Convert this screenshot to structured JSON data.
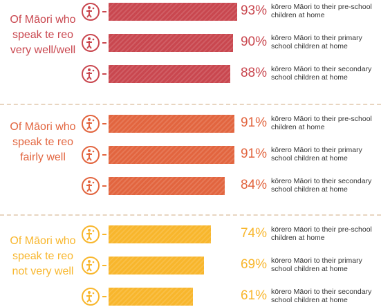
{
  "chart_data": [
    {
      "type": "bar",
      "title": "Of Māori who speak te reo very well/well",
      "color": "#c9474f",
      "categories": [
        "kōrero Māori to their pre-school children at home",
        "kōrero Māori to their primary school children at home",
        "kōrero Māori to their secondary school children at home"
      ],
      "values": [
        93,
        90,
        88
      ],
      "value_labels": [
        "93%",
        "90%",
        "88%"
      ]
    },
    {
      "type": "bar",
      "title": "Of Māori who speak te reo fairly well",
      "color": "#e2653f",
      "categories": [
        "kōrero Māori to their pre-school children at home",
        "kōrero Māori to their primary school children at home",
        "kōrero Māori to their secondary school children at home"
      ],
      "values": [
        91,
        91,
        84
      ],
      "value_labels": [
        "91%",
        "91%",
        "84%"
      ]
    },
    {
      "type": "bar",
      "title": "Of Māori who speak te reo not very well",
      "color": "#f8b62c",
      "categories": [
        "kōrero Māori to their pre-school children at home",
        "kōrero Māori to their primary school children at home",
        "kōrero Māori to their secondary school children at home"
      ],
      "values": [
        74,
        69,
        61
      ],
      "value_labels": [
        "74%",
        "69%",
        "61%"
      ]
    }
  ]
}
